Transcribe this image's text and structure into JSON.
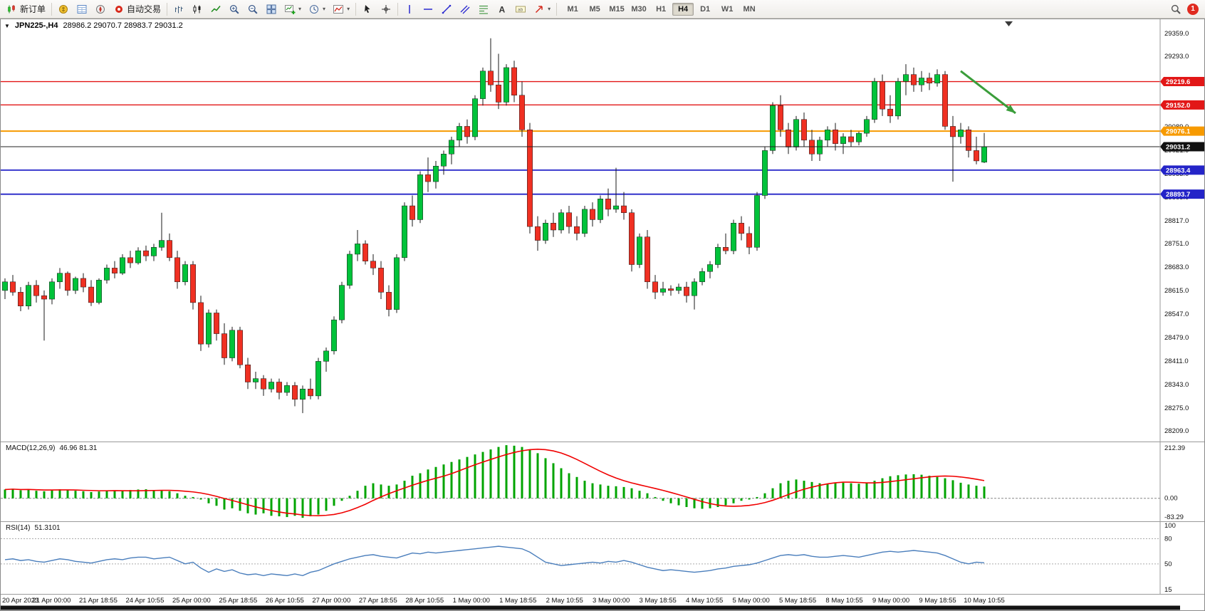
{
  "app": {
    "notification_count": "1"
  },
  "icons": {
    "dropdown_arrow": "▾",
    "symbol_dropdown": "▼"
  },
  "toolbar": {
    "items": [
      {
        "name": "new-order",
        "label": "新订单",
        "icon": "new-order-icon"
      },
      {
        "sep": true
      },
      {
        "name": "market-watch",
        "icon": "market-watch-icon"
      },
      {
        "name": "data-window",
        "icon": "data-window-icon"
      },
      {
        "name": "navigator",
        "icon": "navigator-icon"
      },
      {
        "name": "autotrading",
        "label": "自动交易",
        "icon": "autotrading-icon"
      },
      {
        "sep": true
      },
      {
        "name": "bar-chart",
        "icon": "bar-chart-icon"
      },
      {
        "name": "candlestick-chart",
        "icon": "candlestick-chart-icon"
      },
      {
        "name": "line-chart",
        "icon": "line-chart-icon"
      },
      {
        "name": "zoom-in",
        "icon": "zoom-in-icon"
      },
      {
        "name": "zoom-out",
        "icon": "zoom-out-icon"
      },
      {
        "name": "tile-windows",
        "icon": "tile-windows-icon"
      },
      {
        "name": "new-chart",
        "icon": "new-chart-icon",
        "dropdown": true
      },
      {
        "name": "profiles",
        "icon": "profiles-icon",
        "dropdown": true
      },
      {
        "name": "indicators",
        "icon": "indicators-icon",
        "dropdown": true
      },
      {
        "sep": true
      },
      {
        "name": "cursor",
        "icon": "cursor-icon"
      },
      {
        "name": "crosshair",
        "icon": "crosshair-icon"
      },
      {
        "sep": true
      },
      {
        "name": "vertical-line",
        "icon": "vertical-line-icon"
      },
      {
        "name": "horizontal-line",
        "icon": "horizontal-line-icon"
      },
      {
        "name": "trendline",
        "icon": "trendline-icon"
      },
      {
        "name": "channel",
        "icon": "channel-icon"
      },
      {
        "name": "fibonacci",
        "icon": "fibonacci-icon"
      },
      {
        "name": "text",
        "icon": "text-icon"
      },
      {
        "name": "text-label",
        "icon": "text-label-icon"
      },
      {
        "name": "arrows",
        "icon": "arrows-icon",
        "dropdown": true
      },
      {
        "sep": true
      }
    ],
    "timeframes": [
      "M1",
      "M5",
      "M15",
      "M30",
      "H1",
      "H4",
      "D1",
      "W1",
      "MN"
    ],
    "active_timeframe": "H4"
  },
  "chart": {
    "title": "JPN225-,H4",
    "ohlc": "28986.2 29070.7 28983.7 29031.2"
  },
  "chart_data": {
    "type": "candlestick",
    "symbol": "JPN225-",
    "timeframe": "H4",
    "ohlc_current": {
      "open": 28986.2,
      "high": 29070.7,
      "low": 28983.7,
      "close": 29031.2
    },
    "current_price": 29031.2,
    "current_price_label": "29031.2",
    "colors": {
      "up": "#00c33a",
      "down": "#f03022",
      "macd_hist": "#00a400",
      "macd_signal": "#f00000",
      "rsi": "#4a7ebc"
    },
    "price_axis_ticks": [
      29359,
      29293,
      29225,
      29157,
      29089,
      29021,
      28953,
      28885,
      28817,
      28751,
      28683,
      28615,
      28547,
      28479,
      28411,
      28343,
      28275,
      28209
    ],
    "horizontal_lines": [
      {
        "price": 29219.6,
        "color": "#e21717",
        "label": "29219.6",
        "width": 1.4
      },
      {
        "price": 29152.0,
        "color": "#e21717",
        "label": "29152.0",
        "width": 1.4
      },
      {
        "price": 29076.1,
        "color": "#f79a00",
        "label": "29076.1",
        "width": 2
      },
      {
        "price": 28963.4,
        "color": "#2424c8",
        "label": "28963.4",
        "width": 1.8
      },
      {
        "price": 28893.7,
        "color": "#2424c8",
        "label": "28893.7",
        "width": 1.8
      }
    ],
    "annotation_arrow": {
      "from_bar": 122,
      "from_price": 29250,
      "to_bar": 129,
      "to_price": 29128,
      "color": "#3a9d3a"
    },
    "time_labels": [
      "20 Apr 2023",
      "21 Apr 00:00",
      "21 Apr 18:55",
      "24 Apr 10:55",
      "25 Apr 00:00",
      "25 Apr 18:55",
      "26 Apr 10:55",
      "27 Apr 00:00",
      "27 Apr 18:55",
      "28 Apr 10:55",
      "1 May 00:00",
      "1 May 18:55",
      "2 May 10:55",
      "3 May 00:00",
      "3 May 18:55",
      "4 May 10:55",
      "5 May 00:00",
      "5 May 18:55",
      "8 May 10:55",
      "9 May 00:00",
      "9 May 18:55",
      "10 May 10:55"
    ],
    "bars": [
      [
        28615,
        28650,
        28590,
        28640
      ],
      [
        28640,
        28660,
        28600,
        28610
      ],
      [
        28610,
        28625,
        28555,
        28570
      ],
      [
        28570,
        28640,
        28560,
        28630
      ],
      [
        28630,
        28645,
        28580,
        28600
      ],
      [
        28600,
        28615,
        28470,
        28590
      ],
      [
        28590,
        28650,
        28575,
        28640
      ],
      [
        28640,
        28680,
        28620,
        28665
      ],
      [
        28665,
        28670,
        28600,
        28615
      ],
      [
        28615,
        28655,
        28605,
        28650
      ],
      [
        28650,
        28665,
        28610,
        28625
      ],
      [
        28625,
        28645,
        28570,
        28580
      ],
      [
        28580,
        28650,
        28575,
        28645
      ],
      [
        28645,
        28690,
        28635,
        28680
      ],
      [
        28680,
        28700,
        28650,
        28665
      ],
      [
        28665,
        28720,
        28660,
        28710
      ],
      [
        28710,
        28730,
        28680,
        28695
      ],
      [
        28695,
        28740,
        28690,
        28730
      ],
      [
        28730,
        28745,
        28700,
        28715
      ],
      [
        28715,
        28750,
        28700,
        28740
      ],
      [
        28740,
        28840,
        28730,
        28760
      ],
      [
        28760,
        28780,
        28700,
        28710
      ],
      [
        28710,
        28730,
        28620,
        28640
      ],
      [
        28640,
        28700,
        28630,
        28690
      ],
      [
        28690,
        28700,
        28560,
        28580
      ],
      [
        28580,
        28600,
        28440,
        28460
      ],
      [
        28460,
        28560,
        28450,
        28550
      ],
      [
        28550,
        28560,
        28470,
        28490
      ],
      [
        28490,
        28520,
        28400,
        28420
      ],
      [
        28420,
        28510,
        28410,
        28500
      ],
      [
        28500,
        28510,
        28390,
        28400
      ],
      [
        28400,
        28420,
        28330,
        28350
      ],
      [
        28350,
        28380,
        28330,
        28360
      ],
      [
        28360,
        28370,
        28310,
        28330
      ],
      [
        28330,
        28360,
        28320,
        28350
      ],
      [
        28350,
        28360,
        28300,
        28320
      ],
      [
        28320,
        28350,
        28310,
        28340
      ],
      [
        28340,
        28350,
        28280,
        28300
      ],
      [
        28300,
        28340,
        28260,
        28330
      ],
      [
        28330,
        28360,
        28300,
        28310
      ],
      [
        28310,
        28420,
        28300,
        28410
      ],
      [
        28410,
        28450,
        28380,
        28440
      ],
      [
        28440,
        28540,
        28430,
        28530
      ],
      [
        28530,
        28640,
        28520,
        28630
      ],
      [
        28630,
        28730,
        28620,
        28720
      ],
      [
        28720,
        28790,
        28700,
        28750
      ],
      [
        28750,
        28760,
        28690,
        28700
      ],
      [
        28700,
        28720,
        28660,
        28680
      ],
      [
        28680,
        28700,
        28590,
        28610
      ],
      [
        28610,
        28630,
        28540,
        28560
      ],
      [
        28560,
        28720,
        28550,
        28710
      ],
      [
        28710,
        28870,
        28700,
        28860
      ],
      [
        28860,
        28890,
        28800,
        28820
      ],
      [
        28820,
        28960,
        28810,
        28950
      ],
      [
        28950,
        29000,
        28900,
        28930
      ],
      [
        28930,
        28990,
        28910,
        28975
      ],
      [
        28975,
        29020,
        28950,
        29010
      ],
      [
        29010,
        29060,
        28980,
        29050
      ],
      [
        29050,
        29100,
        29030,
        29090
      ],
      [
        29090,
        29110,
        29040,
        29060
      ],
      [
        29060,
        29180,
        29050,
        29170
      ],
      [
        29170,
        29260,
        29150,
        29250
      ],
      [
        29250,
        29345,
        29190,
        29210
      ],
      [
        29210,
        29300,
        29140,
        29160
      ],
      [
        29160,
        29270,
        29150,
        29260
      ],
      [
        29260,
        29280,
        29160,
        29180
      ],
      [
        29180,
        29220,
        29060,
        29080
      ],
      [
        29080,
        29100,
        28780,
        28800
      ],
      [
        28800,
        28830,
        28730,
        28760
      ],
      [
        28760,
        28820,
        28750,
        28810
      ],
      [
        28810,
        28840,
        28770,
        28790
      ],
      [
        28790,
        28850,
        28780,
        28840
      ],
      [
        28840,
        28860,
        28780,
        28800
      ],
      [
        28800,
        28830,
        28760,
        28780
      ],
      [
        28780,
        28860,
        28770,
        28850
      ],
      [
        28850,
        28870,
        28800,
        28820
      ],
      [
        28820,
        28890,
        28810,
        28880
      ],
      [
        28880,
        28910,
        28830,
        28850
      ],
      [
        28850,
        28970,
        28840,
        28860
      ],
      [
        28860,
        28900,
        28820,
        28840
      ],
      [
        28840,
        28850,
        28670,
        28690
      ],
      [
        28690,
        28780,
        28680,
        28770
      ],
      [
        28770,
        28790,
        28620,
        28640
      ],
      [
        28640,
        28660,
        28590,
        28610
      ],
      [
        28610,
        28640,
        28600,
        28620
      ],
      [
        28620,
        28630,
        28600,
        28615
      ],
      [
        28615,
        28635,
        28605,
        28625
      ],
      [
        28625,
        28640,
        28580,
        28600
      ],
      [
        28600,
        28650,
        28560,
        28640
      ],
      [
        28640,
        28680,
        28630,
        28670
      ],
      [
        28670,
        28700,
        28650,
        28690
      ],
      [
        28690,
        28750,
        28680,
        28740
      ],
      [
        28740,
        28780,
        28720,
        28730
      ],
      [
        28730,
        28820,
        28720,
        28810
      ],
      [
        28810,
        28830,
        28760,
        28780
      ],
      [
        28780,
        28800,
        28720,
        28740
      ],
      [
        28740,
        28900,
        28730,
        28890
      ],
      [
        28890,
        29030,
        28880,
        29020
      ],
      [
        29020,
        29160,
        29010,
        29150
      ],
      [
        29150,
        29180,
        29060,
        29080
      ],
      [
        29080,
        29100,
        29010,
        29030
      ],
      [
        29030,
        29120,
        29020,
        29110
      ],
      [
        29110,
        29130,
        29030,
        29050
      ],
      [
        29050,
        29080,
        28990,
        29010
      ],
      [
        29010,
        29060,
        28990,
        29050
      ],
      [
        29050,
        29090,
        29030,
        29080
      ],
      [
        29080,
        29100,
        29020,
        29040
      ],
      [
        29040,
        29070,
        29010,
        29060
      ],
      [
        29060,
        29080,
        29030,
        29045
      ],
      [
        29045,
        29075,
        29035,
        29070
      ],
      [
        29070,
        29120,
        29060,
        29110
      ],
      [
        29110,
        29230,
        29100,
        29220
      ],
      [
        29220,
        29240,
        29120,
        29140
      ],
      [
        29140,
        29180,
        29100,
        29120
      ],
      [
        29120,
        29230,
        29110,
        29220
      ],
      [
        29220,
        29270,
        29180,
        29240
      ],
      [
        29240,
        29260,
        29190,
        29210
      ],
      [
        29210,
        29250,
        29190,
        29230
      ],
      [
        29230,
        29245,
        29195,
        29215
      ],
      [
        29215,
        29255,
        29205,
        29240
      ],
      [
        29240,
        29250,
        29080,
        29090
      ],
      [
        29090,
        29120,
        28930,
        29060
      ],
      [
        29060,
        29100,
        29040,
        29080
      ],
      [
        29080,
        29090,
        29000,
        29020
      ],
      [
        29020,
        29060,
        28980,
        28990
      ],
      [
        28986.2,
        29070.7,
        28983.7,
        29031.2
      ]
    ],
    "macd": {
      "label": "MACD(12,26,9)",
      "values_display": "46.96 81.31",
      "axis_labels": [
        "212.39",
        "0.00",
        "-83.29"
      ],
      "max": 212.39,
      "min": -83.29,
      "histogram": [
        35,
        38,
        32,
        36,
        30,
        28,
        33,
        36,
        34,
        30,
        28,
        25,
        27,
        30,
        32,
        30,
        33,
        35,
        36,
        32,
        30,
        28,
        20,
        10,
        5,
        -5,
        -20,
        -30,
        -45,
        -40,
        -50,
        -60,
        -65,
        -60,
        -70,
        -72,
        -75,
        -70,
        -78,
        -72,
        -65,
        -50,
        -30,
        -10,
        10,
        30,
        50,
        60,
        55,
        50,
        55,
        70,
        90,
        100,
        115,
        125,
        135,
        145,
        155,
        165,
        175,
        185,
        195,
        205,
        212,
        210,
        205,
        195,
        180,
        160,
        140,
        120,
        100,
        85,
        70,
        60,
        55,
        50,
        48,
        45,
        40,
        30,
        20,
        5,
        -10,
        -20,
        -28,
        -35,
        -40,
        -42,
        -40,
        -35,
        -28,
        -20,
        -10,
        -5,
        5,
        20,
        40,
        60,
        70,
        75,
        70,
        65,
        60,
        58,
        60,
        62,
        60,
        58,
        62,
        70,
        80,
        88,
        92,
        95,
        96,
        94,
        90,
        85,
        80,
        72,
        62,
        55,
        50,
        47
      ]
    },
    "rsi": {
      "label": "RSI(14)",
      "value_display": "51.3101",
      "axis_labels": [
        "100",
        "80",
        "50",
        "15"
      ],
      "levels": [
        80,
        50
      ],
      "scale_min": 15,
      "scale_max": 100,
      "values": [
        55,
        56,
        54,
        55,
        53,
        52,
        54,
        56,
        55,
        53,
        52,
        51,
        53,
        55,
        56,
        55,
        57,
        58,
        58,
        56,
        57,
        58,
        54,
        50,
        52,
        45,
        40,
        44,
        41,
        43,
        39,
        37,
        38,
        36,
        38,
        37,
        36,
        38,
        36,
        40,
        42,
        46,
        50,
        53,
        56,
        58,
        60,
        61,
        59,
        58,
        57,
        60,
        63,
        62,
        64,
        63,
        64,
        65,
        66,
        67,
        68,
        69,
        70,
        71,
        70,
        69,
        68,
        64,
        58,
        52,
        50,
        48,
        49,
        50,
        51,
        52,
        51,
        53,
        52,
        54,
        52,
        49,
        46,
        44,
        42,
        43,
        42,
        41,
        40,
        41,
        42,
        44,
        45,
        47,
        48,
        49,
        51,
        54,
        57,
        60,
        61,
        60,
        61,
        59,
        58,
        58,
        59,
        60,
        59,
        58,
        60,
        62,
        64,
        65,
        64,
        65,
        66,
        65,
        64,
        63,
        60,
        56,
        52,
        50,
        52,
        51.31
      ]
    }
  }
}
